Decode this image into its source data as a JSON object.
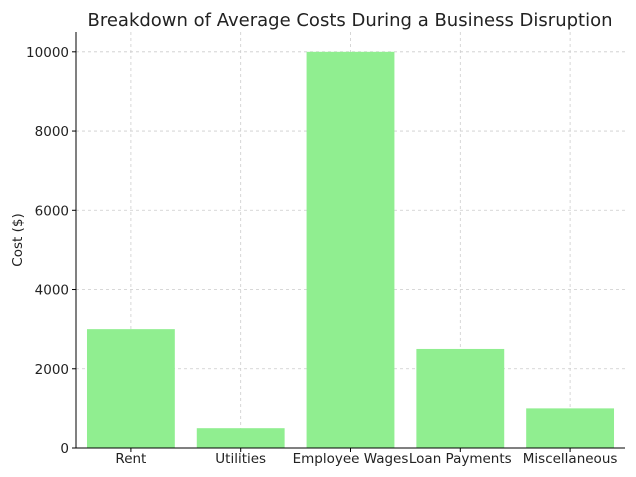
{
  "chart_data": {
    "type": "bar",
    "title": "Breakdown of Average Costs During a Business Disruption",
    "xlabel": "",
    "ylabel": "Cost ($)",
    "categories": [
      "Rent",
      "Utilities",
      "Employee Wages",
      "Loan Payments",
      "Miscellaneous"
    ],
    "values": [
      3000,
      500,
      10000,
      2500,
      1000
    ],
    "ylim": [
      0,
      10500
    ],
    "yticks": [
      0,
      2000,
      4000,
      6000,
      8000,
      10000
    ],
    "bar_color": "#90ee90",
    "grid": true
  }
}
